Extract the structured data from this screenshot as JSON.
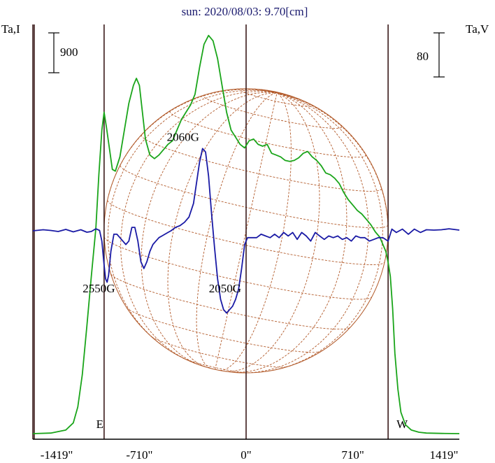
{
  "chart_data": {
    "type": "line",
    "title": "sun: 2020/08/03: 9.70[cm]",
    "left_axis_label": "Ta,I",
    "right_axis_label": "Ta,V",
    "scale_bars": {
      "left": "900",
      "right": "80"
    },
    "x_unit": "arcsec",
    "xlim": [
      -1419,
      1419
    ],
    "x_ticks": [
      {
        "value": -1419,
        "label": "-1419\""
      },
      {
        "value": -710,
        "label": "-710\""
      },
      {
        "value": 0,
        "label": "0\""
      },
      {
        "value": 710,
        "label": "710\""
      },
      {
        "value": 1419,
        "label": "1419\""
      }
    ],
    "limb_markers": [
      {
        "value": -1419,
        "label": ""
      },
      {
        "value": -1410,
        "label": ""
      },
      {
        "value": -945,
        "label": "E"
      },
      {
        "value": 0,
        "label": ""
      },
      {
        "value": 945,
        "label": "W"
      }
    ],
    "series": [
      {
        "name": "I",
        "color": "#1aa51a",
        "x": [
          -1419,
          -1300,
          -1200,
          -1150,
          -1120,
          -1090,
          -1060,
          -1030,
          -1000,
          -980,
          -960,
          -945,
          -930,
          -910,
          -890,
          -870,
          -840,
          -810,
          -780,
          -750,
          -730,
          -710,
          -690,
          -670,
          -640,
          -610,
          -580,
          -550,
          -520,
          -490,
          -460,
          -430,
          -400,
          -370,
          -340,
          -310,
          -280,
          -250,
          -220,
          -190,
          -160,
          -130,
          -100,
          -70,
          -40,
          -10,
          20,
          50,
          80,
          110,
          140,
          170,
          200,
          230,
          260,
          290,
          320,
          350,
          380,
          410,
          440,
          470,
          500,
          530,
          560,
          590,
          620,
          650,
          680,
          710,
          740,
          770,
          800,
          830,
          860,
          890,
          910,
          930,
          945,
          960,
          975,
          990,
          1010,
          1030,
          1060,
          1100,
          1150,
          1200,
          1300,
          1419
        ],
        "y": [
          0,
          3,
          20,
          60,
          150,
          330,
          600,
          880,
          1150,
          1450,
          1700,
          1800,
          1720,
          1600,
          1480,
          1470,
          1550,
          1700,
          1850,
          1950,
          1990,
          1950,
          1800,
          1650,
          1560,
          1540,
          1560,
          1590,
          1620,
          1640,
          1700,
          1760,
          1800,
          1840,
          1900,
          2050,
          2180,
          2230,
          2200,
          2100,
          1950,
          1800,
          1700,
          1660,
          1620,
          1600,
          1640,
          1650,
          1620,
          1610,
          1620,
          1570,
          1560,
          1550,
          1530,
          1525,
          1530,
          1545,
          1570,
          1580,
          1550,
          1530,
          1500,
          1460,
          1450,
          1430,
          1400,
          1350,
          1310,
          1280,
          1250,
          1230,
          1200,
          1170,
          1130,
          1100,
          1060,
          1020,
          960,
          880,
          700,
          450,
          250,
          120,
          50,
          20,
          8,
          3,
          1,
          0
        ]
      },
      {
        "name": "V",
        "color": "#1a1aa5",
        "x": [
          -1419,
          -1350,
          -1300,
          -1250,
          -1200,
          -1150,
          -1100,
          -1060,
          -1030,
          -1000,
          -975,
          -960,
          -945,
          -935,
          -925,
          -915,
          -900,
          -880,
          -860,
          -840,
          -820,
          -800,
          -780,
          -760,
          -740,
          -720,
          -700,
          -680,
          -660,
          -640,
          -620,
          -600,
          -580,
          -560,
          -540,
          -520,
          -500,
          -470,
          -440,
          -410,
          -380,
          -350,
          -330,
          -310,
          -290,
          -270,
          -250,
          -230,
          -210,
          -190,
          -170,
          -150,
          -130,
          -110,
          -90,
          -70,
          -50,
          -30,
          -10,
          10,
          40,
          70,
          100,
          130,
          160,
          190,
          220,
          250,
          280,
          310,
          340,
          370,
          400,
          430,
          460,
          490,
          520,
          550,
          580,
          610,
          640,
          670,
          700,
          730,
          760,
          790,
          820,
          850,
          880,
          910,
          945,
          970,
          1000,
          1040,
          1080,
          1120,
          1160,
          1200,
          1250,
          1300,
          1350,
          1419
        ],
        "y": [
          0,
          0.3,
          0.1,
          -0.2,
          0.4,
          -0.3,
          0.3,
          -0.4,
          -0.2,
          0.6,
          0.1,
          -3,
          -10,
          -14,
          -15,
          -13,
          -6,
          -1,
          -1,
          -2,
          -3,
          -4,
          -3,
          1,
          1,
          -3,
          -9,
          -11,
          -9,
          -6,
          -4,
          -3,
          -2,
          -1.5,
          -1,
          -0.5,
          0,
          1,
          1.5,
          2.5,
          4,
          8,
          14,
          20,
          24,
          23,
          16,
          5,
          -5,
          -14,
          -20,
          -23,
          -24,
          -23,
          -22,
          -20,
          -17,
          -11,
          -4,
          -2,
          -2,
          -2,
          -1,
          -1.5,
          -2,
          -1,
          -2,
          -0.5,
          -1.5,
          -0.5,
          -2.5,
          -0.5,
          -1.5,
          -3,
          -0.5,
          -1.5,
          -2.5,
          -1.5,
          -2,
          -1.5,
          -2.5,
          -2,
          -3,
          -1.5,
          -2,
          -2,
          -3,
          -2.5,
          -2,
          -2,
          -3,
          0.5,
          -0.5,
          0.5,
          -1,
          0.5,
          -0.5,
          0.3,
          0.2,
          0.3,
          0.6,
          0.2
        ]
      }
    ],
    "annotations": [
      {
        "text": "2060G",
        "x": -420,
        "y_series": "I",
        "y": 1640
      },
      {
        "text": "2550G",
        "x": -980,
        "y_series": "V",
        "y": -18
      },
      {
        "text": "2050G",
        "x": -140,
        "y_series": "V",
        "y": -18
      }
    ]
  }
}
